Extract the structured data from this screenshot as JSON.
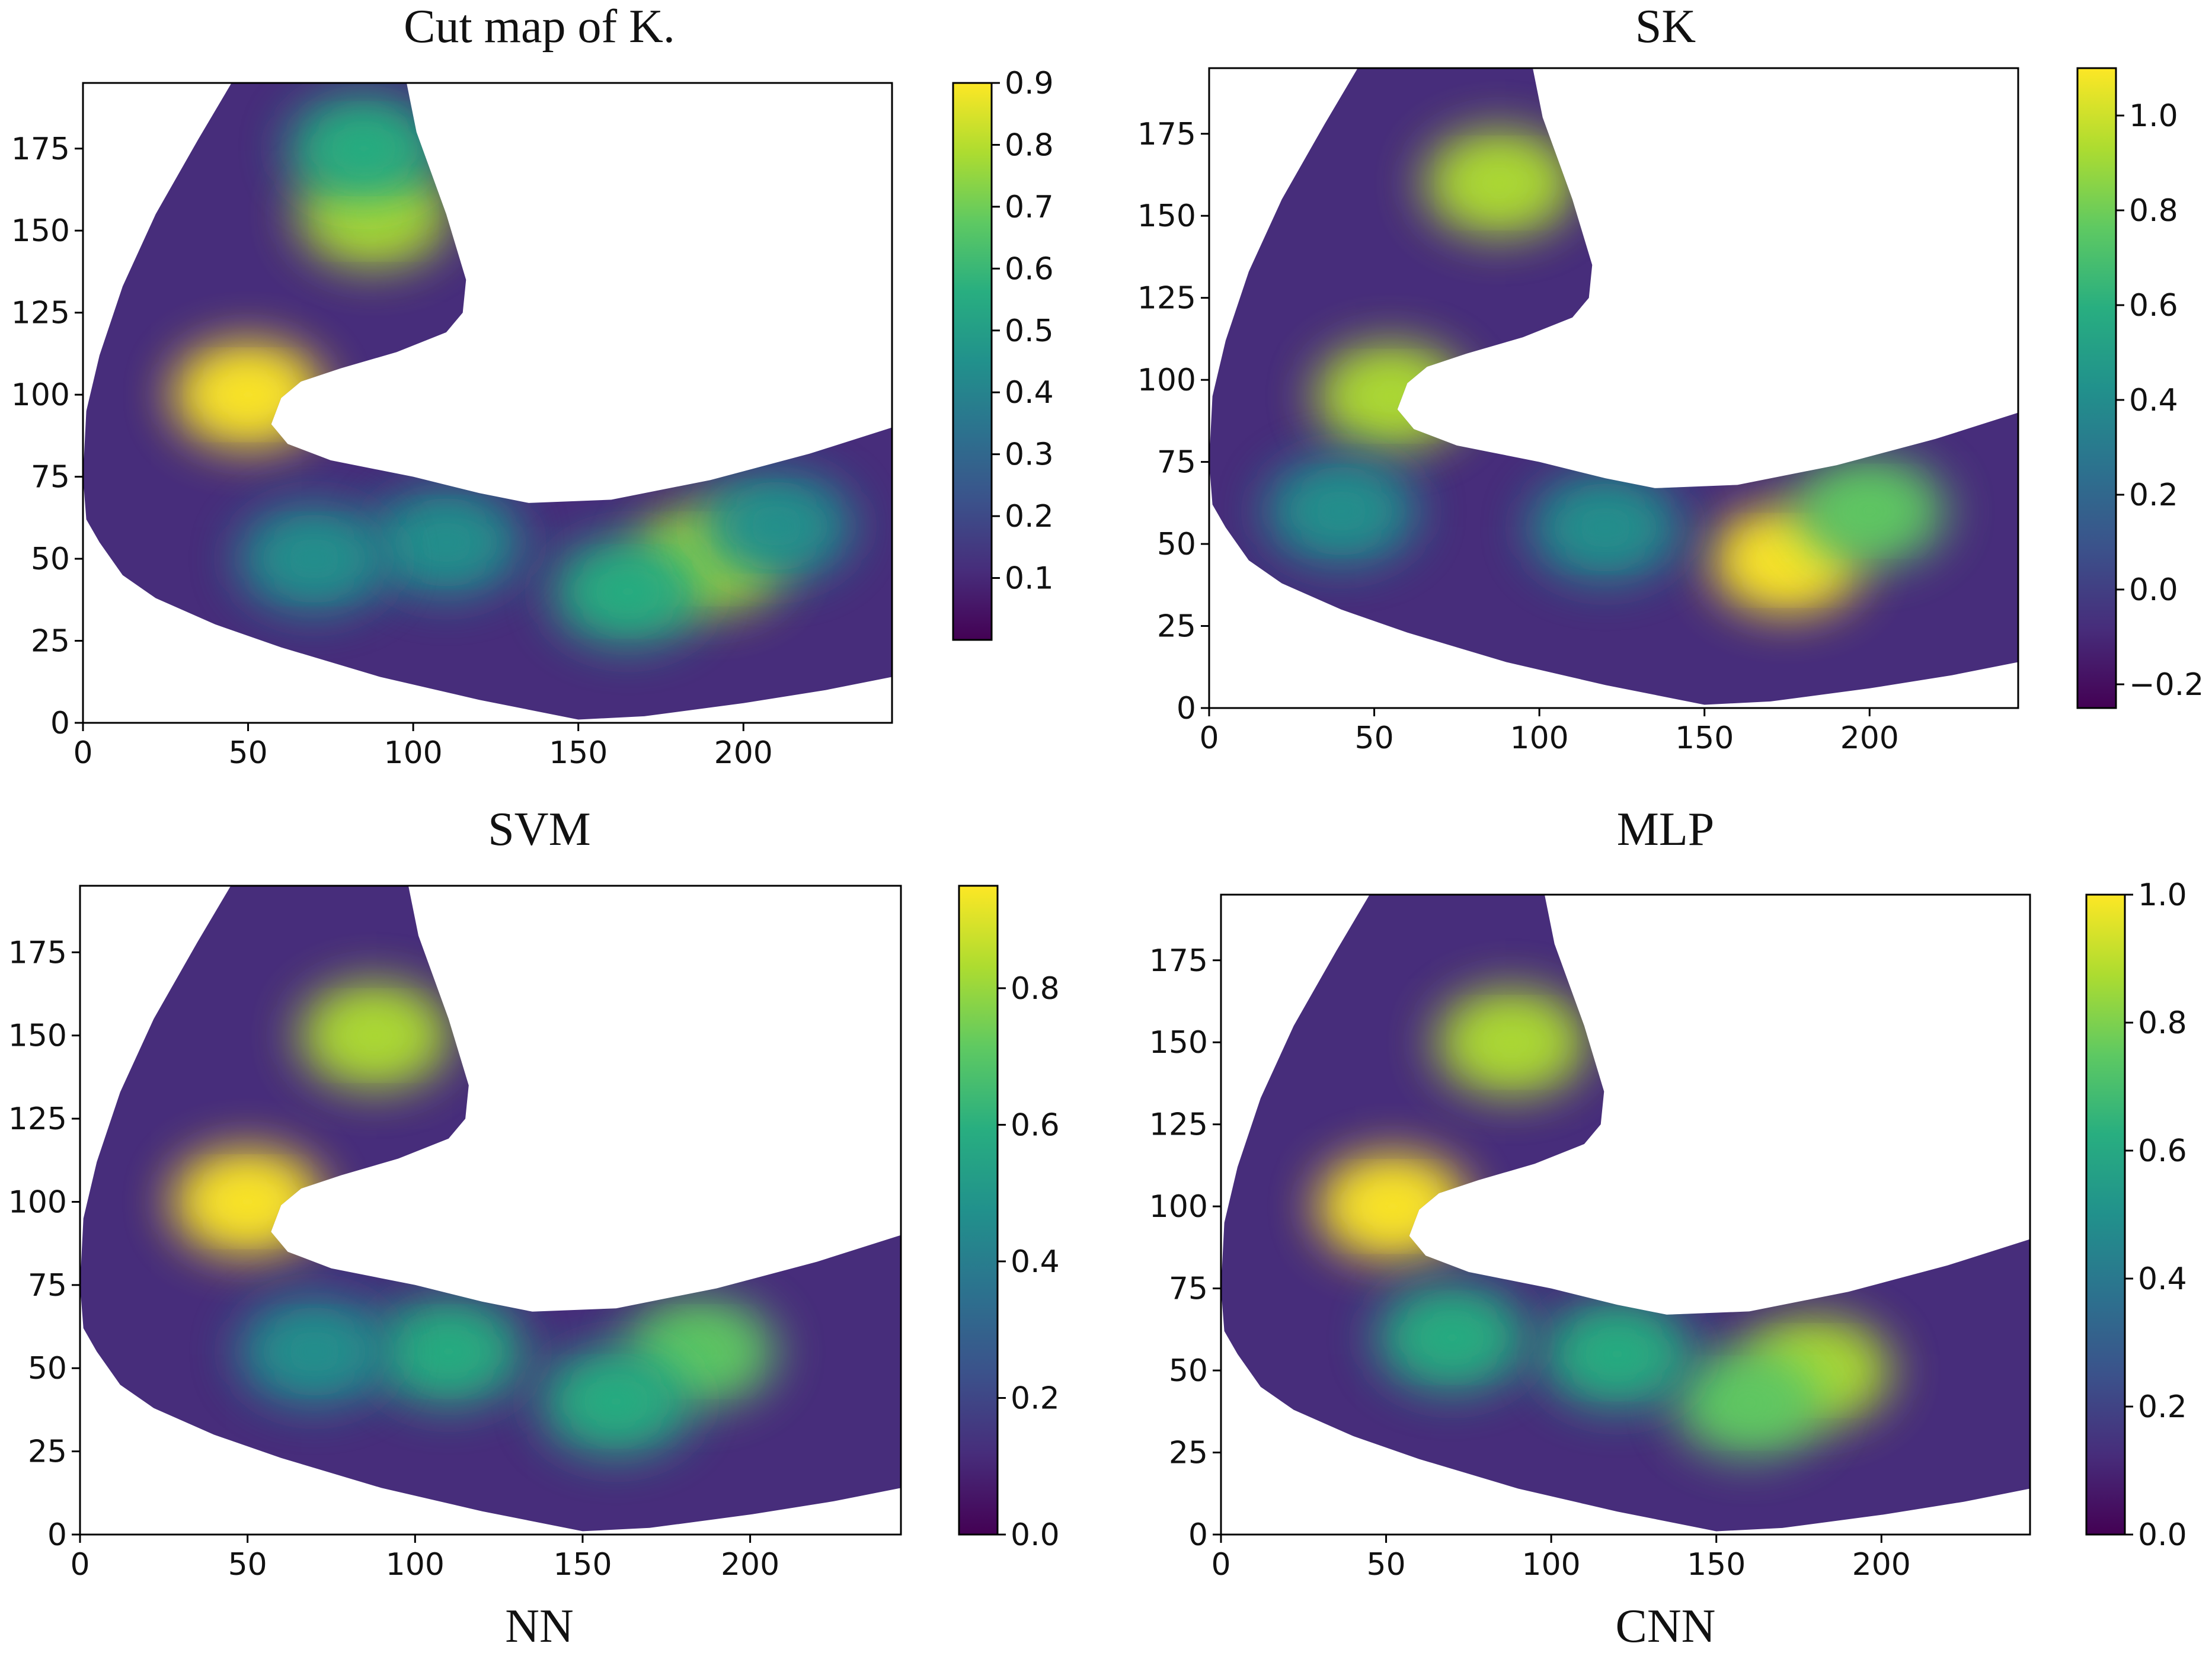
{
  "figure": {
    "captions": [
      "Cut map of K.",
      "SK",
      "SVM",
      "MLP",
      "NN",
      "CNN"
    ]
  },
  "colormap": {
    "name": "viridis",
    "stops": [
      "#440154",
      "#472d7b",
      "#3b528b",
      "#2c728e",
      "#21918c",
      "#28ae80",
      "#5ec962",
      "#addc30",
      "#fde725"
    ]
  },
  "chart_data": [
    {
      "type": "heatmap",
      "title": "Cut map of K.",
      "xlim": [
        0,
        245
      ],
      "ylim": [
        0,
        195
      ],
      "x_ticks": [
        "0",
        "50",
        "100",
        "150",
        "200"
      ],
      "y_ticks": [
        "0",
        "25",
        "50",
        "75",
        "100",
        "125",
        "150",
        "175"
      ],
      "colorbar": {
        "min": 0.0,
        "max": 0.9,
        "ticks": [
          "0.1",
          "0.2",
          "0.3",
          "0.4",
          "0.5",
          "0.6",
          "0.7",
          "0.8",
          "0.9"
        ]
      },
      "hotspots": [
        {
          "x": 50,
          "y": 100,
          "value": 0.9
        },
        {
          "x": 88,
          "y": 155,
          "value": 0.8
        },
        {
          "x": 85,
          "y": 175,
          "value": 0.6
        },
        {
          "x": 190,
          "y": 50,
          "value": 0.75
        },
        {
          "x": 165,
          "y": 40,
          "value": 0.55
        },
        {
          "x": 110,
          "y": 55,
          "value": 0.5
        },
        {
          "x": 70,
          "y": 50,
          "value": 0.45
        },
        {
          "x": 210,
          "y": 60,
          "value": 0.5
        }
      ]
    },
    {
      "type": "heatmap",
      "title": "SK",
      "xlim": [
        0,
        245
      ],
      "ylim": [
        0,
        195
      ],
      "x_ticks": [
        "0",
        "50",
        "100",
        "150",
        "200"
      ],
      "y_ticks": [
        "0",
        "25",
        "50",
        "75",
        "100",
        "125",
        "150",
        "175"
      ],
      "colorbar": {
        "min": -0.25,
        "max": 1.1,
        "ticks": [
          "−0.2",
          "0.0",
          "0.2",
          "0.4",
          "0.6",
          "0.8",
          "1.0"
        ]
      },
      "hotspots": [
        {
          "x": 55,
          "y": 95,
          "value": 0.95
        },
        {
          "x": 88,
          "y": 160,
          "value": 1.0
        },
        {
          "x": 175,
          "y": 45,
          "value": 1.05
        },
        {
          "x": 200,
          "y": 60,
          "value": 0.8
        },
        {
          "x": 120,
          "y": 55,
          "value": 0.5
        },
        {
          "x": 40,
          "y": 60,
          "value": 0.45
        }
      ]
    },
    {
      "type": "heatmap",
      "title": "SVM",
      "xlim": [
        0,
        245
      ],
      "ylim": [
        0,
        195
      ],
      "x_ticks": [
        "0",
        "50",
        "100",
        "150",
        "200"
      ],
      "y_ticks": [
        "0",
        "25",
        "50",
        "75",
        "100",
        "125",
        "150",
        "175"
      ],
      "colorbar": {
        "min": 0.0,
        "max": 0.95,
        "ticks": [
          "0.0",
          "0.2",
          "0.4",
          "0.6",
          "0.8"
        ]
      },
      "hotspots": [
        {
          "x": 50,
          "y": 100,
          "value": 0.95
        },
        {
          "x": 88,
          "y": 150,
          "value": 0.85
        },
        {
          "x": 185,
          "y": 55,
          "value": 0.75
        },
        {
          "x": 160,
          "y": 40,
          "value": 0.6
        },
        {
          "x": 110,
          "y": 55,
          "value": 0.55
        },
        {
          "x": 70,
          "y": 55,
          "value": 0.5
        }
      ]
    },
    {
      "type": "heatmap",
      "title": "MLP",
      "xlim": [
        0,
        245
      ],
      "ylim": [
        0,
        195
      ],
      "x_ticks": [
        "0",
        "50",
        "100",
        "150",
        "200"
      ],
      "y_ticks": [
        "0",
        "25",
        "50",
        "75",
        "100",
        "125",
        "150",
        "175"
      ],
      "colorbar": {
        "min": 0.0,
        "max": 1.0,
        "ticks": [
          "0.0",
          "0.2",
          "0.4",
          "0.6",
          "0.8",
          "1.0"
        ]
      },
      "hotspots": [
        {
          "x": 52,
          "y": 100,
          "value": 0.95
        },
        {
          "x": 88,
          "y": 150,
          "value": 0.85
        },
        {
          "x": 180,
          "y": 50,
          "value": 0.9
        },
        {
          "x": 160,
          "y": 40,
          "value": 0.7
        },
        {
          "x": 120,
          "y": 55,
          "value": 0.6
        },
        {
          "x": 70,
          "y": 60,
          "value": 0.6
        }
      ]
    }
  ]
}
